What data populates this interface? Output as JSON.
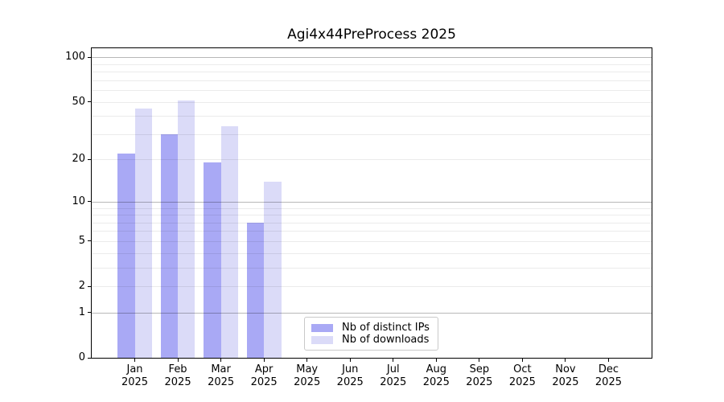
{
  "chart_data": {
    "type": "bar",
    "title": "Agi4x44PreProcess 2025",
    "categories": [
      "Jan",
      "Feb",
      "Mar",
      "Apr",
      "May",
      "Jun",
      "Jul",
      "Aug",
      "Sep",
      "Oct",
      "Nov",
      "Dec"
    ],
    "year": "2025",
    "series": [
      {
        "name": "Nb of distinct IPs",
        "color": "#a9a9f5",
        "values": [
          22,
          30,
          19,
          7,
          0,
          0,
          0,
          0,
          0,
          0,
          0,
          0
        ]
      },
      {
        "name": "Nb of downloads",
        "color": "#dbdbf8",
        "values": [
          45,
          51,
          34,
          14,
          0,
          0,
          0,
          0,
          0,
          0,
          0,
          0
        ]
      }
    ],
    "yscale": "log1p",
    "ylim": [
      0,
      115
    ],
    "yticks": [
      0,
      1,
      2,
      5,
      10,
      20,
      50,
      100
    ],
    "major_gridlines": [
      1,
      10,
      100
    ],
    "minor_gridlines": [
      2,
      3,
      4,
      5,
      6,
      7,
      8,
      9,
      20,
      30,
      40,
      50,
      60,
      70,
      80,
      90
    ],
    "grid": true,
    "legend_position": "lower-center",
    "xlabel": "",
    "ylabel": ""
  },
  "legend": {
    "items": [
      "Nb of distinct IPs",
      "Nb of downloads"
    ]
  }
}
